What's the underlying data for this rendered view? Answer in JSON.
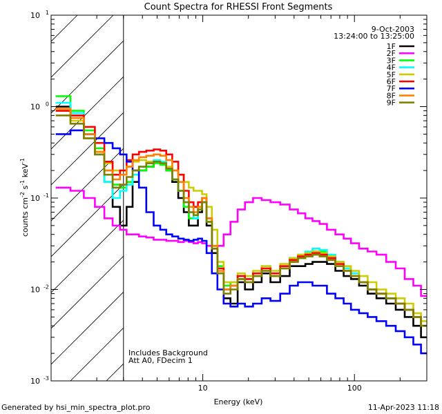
{
  "chart_data": {
    "type": "line",
    "title": "Count Spectra for RHESSI Front Segments",
    "xlabel": "Energy (keV)",
    "ylabel_main": "counts cm",
    "ylabel_exp1": "-2",
    "ylabel_s": " s",
    "ylabel_exp2": "-1",
    "ylabel_kev": " keV",
    "ylabel_exp3": "-1",
    "xscale": "log",
    "yscale": "log",
    "xlim": [
      1,
      300
    ],
    "ylim": [
      0.001,
      10
    ],
    "x_ticks": [
      {
        "v": 10,
        "label": "10"
      },
      {
        "v": 100,
        "label": "100"
      }
    ],
    "y_ticks": [
      {
        "v": 0.001,
        "base": "10",
        "exp": "-3"
      },
      {
        "v": 0.01,
        "base": "10",
        "exp": "-2"
      },
      {
        "v": 0.1,
        "base": "10",
        "exp": "-1"
      },
      {
        "v": 1,
        "base": "10",
        "exp": "0"
      },
      {
        "v": 10,
        "base": "10",
        "exp": "1"
      }
    ],
    "hatch_region_x": [
      1,
      3
    ],
    "date": "9-Oct-2003",
    "time_range": "13:24:00 to 13:25:00",
    "annotation_lines": [
      "Includes Background",
      "Att A0, FDecim 1"
    ],
    "energy_points": [
      1.2,
      1.5,
      1.8,
      2.1,
      2.4,
      2.7,
      3.0,
      3.3,
      3.6,
      4.0,
      4.5,
      5.0,
      5.5,
      6.0,
      6.6,
      7.2,
      7.8,
      8.4,
      9.0,
      9.6,
      10.2,
      11.0,
      12.0,
      13.0,
      14.5,
      16.0,
      18.0,
      20.0,
      23.0,
      26.0,
      30.0,
      35.0,
      40.0,
      45.0,
      50.0,
      56.0,
      62.0,
      70.0,
      80.0,
      90.0,
      100.0,
      115.0,
      130.0,
      150.0,
      175.0,
      200.0,
      230.0,
      260.0,
      290.0
    ],
    "series": [
      {
        "name": "1F",
        "color": "#000000",
        "values": [
          1.0,
          0.8,
          0.5,
          0.3,
          0.15,
          0.08,
          0.05,
          0.08,
          0.15,
          0.2,
          0.22,
          0.25,
          0.24,
          0.2,
          0.15,
          0.1,
          0.07,
          0.05,
          0.05,
          0.07,
          0.09,
          0.05,
          0.025,
          0.015,
          0.008,
          0.007,
          0.012,
          0.01,
          0.012,
          0.015,
          0.012,
          0.014,
          0.018,
          0.018,
          0.019,
          0.02,
          0.02,
          0.019,
          0.016,
          0.014,
          0.013,
          0.011,
          0.009,
          0.008,
          0.007,
          0.006,
          0.005,
          0.004,
          0.003
        ]
      },
      {
        "name": "2F",
        "color": "#ff00ff",
        "values": [
          0.13,
          0.12,
          0.1,
          0.08,
          0.06,
          0.05,
          0.045,
          0.04,
          0.04,
          0.038,
          0.037,
          0.035,
          0.035,
          0.034,
          0.034,
          0.033,
          0.034,
          0.033,
          0.032,
          0.033,
          0.032,
          0.03,
          0.028,
          0.03,
          0.04,
          0.055,
          0.075,
          0.09,
          0.1,
          0.095,
          0.09,
          0.085,
          0.075,
          0.068,
          0.06,
          0.056,
          0.052,
          0.045,
          0.04,
          0.036,
          0.032,
          0.028,
          0.026,
          0.024,
          0.02,
          0.017,
          0.013,
          0.011,
          0.0085
        ]
      },
      {
        "name": "3F",
        "color": "#00ff00",
        "values": [
          1.3,
          0.9,
          0.55,
          0.35,
          0.2,
          0.14,
          0.13,
          0.15,
          0.18,
          0.2,
          0.22,
          0.24,
          0.23,
          0.2,
          0.16,
          0.12,
          0.08,
          0.06,
          0.06,
          0.08,
          0.1,
          0.055,
          0.03,
          0.018,
          0.011,
          0.012,
          0.014,
          0.013,
          0.015,
          0.017,
          0.014,
          0.017,
          0.022,
          0.023,
          0.025,
          0.026,
          0.026,
          0.023,
          0.02,
          0.017,
          0.015,
          0.012,
          0.01,
          0.009,
          0.008,
          0.007,
          0.006,
          0.005,
          0.004
        ]
      },
      {
        "name": "4F",
        "color": "#00ffff",
        "values": [
          1.1,
          0.85,
          0.5,
          0.3,
          0.15,
          0.1,
          0.12,
          0.14,
          0.18,
          0.22,
          0.24,
          0.26,
          0.25,
          0.21,
          0.16,
          0.12,
          0.09,
          0.07,
          0.06,
          0.08,
          0.1,
          0.06,
          0.03,
          0.017,
          0.01,
          0.011,
          0.014,
          0.013,
          0.015,
          0.018,
          0.015,
          0.018,
          0.022,
          0.024,
          0.026,
          0.028,
          0.027,
          0.024,
          0.02,
          0.017,
          0.015,
          0.012,
          0.01,
          0.009,
          0.008,
          0.007,
          0.006,
          0.005,
          0.004
        ]
      },
      {
        "name": "5F",
        "color": "#cccc00",
        "values": [
          0.9,
          0.7,
          0.45,
          0.32,
          0.24,
          0.2,
          0.2,
          0.22,
          0.25,
          0.26,
          0.25,
          0.25,
          0.24,
          0.22,
          0.2,
          0.18,
          0.15,
          0.13,
          0.12,
          0.12,
          0.11,
          0.08,
          0.045,
          0.02,
          0.012,
          0.012,
          0.015,
          0.014,
          0.016,
          0.018,
          0.016,
          0.019,
          0.022,
          0.024,
          0.025,
          0.026,
          0.025,
          0.023,
          0.02,
          0.018,
          0.016,
          0.014,
          0.012,
          0.01,
          0.009,
          0.008,
          0.007,
          0.0055,
          0.0045
        ]
      },
      {
        "name": "6F",
        "color": "#ff0000",
        "values": [
          0.9,
          0.8,
          0.6,
          0.4,
          0.25,
          0.18,
          0.2,
          0.26,
          0.3,
          0.32,
          0.33,
          0.34,
          0.33,
          0.3,
          0.25,
          0.18,
          0.12,
          0.09,
          0.08,
          0.09,
          0.1,
          0.06,
          0.03,
          0.017,
          0.01,
          0.011,
          0.014,
          0.013,
          0.015,
          0.017,
          0.015,
          0.018,
          0.021,
          0.023,
          0.024,
          0.025,
          0.024,
          0.022,
          0.019,
          0.016,
          0.014,
          0.012,
          0.01,
          0.009,
          0.008,
          0.007,
          0.006,
          0.005,
          0.004
        ]
      },
      {
        "name": "7F",
        "color": "#0000ff",
        "values": [
          0.5,
          0.55,
          0.5,
          0.45,
          0.4,
          0.35,
          0.3,
          0.25,
          0.2,
          0.13,
          0.07,
          0.05,
          0.045,
          0.04,
          0.038,
          0.036,
          0.035,
          0.034,
          0.035,
          0.036,
          0.034,
          0.025,
          0.015,
          0.01,
          0.007,
          0.0065,
          0.007,
          0.0065,
          0.007,
          0.008,
          0.0075,
          0.009,
          0.011,
          0.012,
          0.012,
          0.011,
          0.011,
          0.009,
          0.008,
          0.007,
          0.006,
          0.0055,
          0.005,
          0.0045,
          0.004,
          0.0035,
          0.003,
          0.0025,
          0.002
        ]
      },
      {
        "name": "8F",
        "color": "#ff8000",
        "values": [
          0.95,
          0.75,
          0.5,
          0.32,
          0.2,
          0.16,
          0.18,
          0.22,
          0.26,
          0.28,
          0.29,
          0.3,
          0.29,
          0.26,
          0.2,
          0.15,
          0.1,
          0.08,
          0.07,
          0.08,
          0.1,
          0.06,
          0.03,
          0.016,
          0.01,
          0.011,
          0.013,
          0.012,
          0.014,
          0.016,
          0.014,
          0.017,
          0.02,
          0.022,
          0.023,
          0.024,
          0.023,
          0.021,
          0.018,
          0.016,
          0.014,
          0.012,
          0.01,
          0.009,
          0.008,
          0.007,
          0.006,
          0.005,
          0.004
        ]
      },
      {
        "name": "9F",
        "color": "#808000",
        "values": [
          0.8,
          0.65,
          0.45,
          0.3,
          0.18,
          0.13,
          0.14,
          0.17,
          0.2,
          0.22,
          0.24,
          0.25,
          0.24,
          0.21,
          0.16,
          0.12,
          0.09,
          0.07,
          0.065,
          0.075,
          0.09,
          0.055,
          0.028,
          0.015,
          0.009,
          0.01,
          0.013,
          0.012,
          0.014,
          0.016,
          0.014,
          0.017,
          0.02,
          0.022,
          0.023,
          0.024,
          0.023,
          0.021,
          0.018,
          0.016,
          0.014,
          0.012,
          0.01,
          0.009,
          0.008,
          0.007,
          0.006,
          0.005,
          0.004
        ]
      }
    ]
  },
  "footer": {
    "left": "Generated by hsi_min_spectra_plot.pro",
    "right": "11-Apr-2023 11:18"
  }
}
